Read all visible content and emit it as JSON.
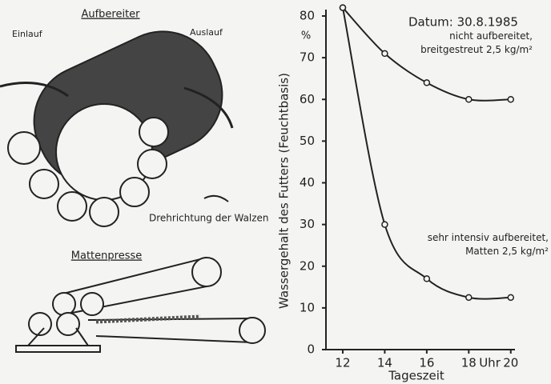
{
  "diagram": {
    "title_top": "Aufbereiter",
    "inlet": "Einlauf",
    "outlet": "Auslauf",
    "rotation": "Drehrichtung der Walzen",
    "title_bottom": "Mattenpresse"
  },
  "chart_data": {
    "type": "line",
    "annotation": "Datum: 30.8.1985",
    "y_unit": "%",
    "x_unit": "Uhr",
    "ylabel": "Wassergehalt des Futters (Feuchtbasis)",
    "xlabel": "Tageszeit",
    "x": [
      12,
      14,
      16,
      18,
      20
    ],
    "series": [
      {
        "name": "nicht aufbereitet, breitgestreut 2,5 kg/m²",
        "color": "#222222",
        "values": [
          82,
          71,
          64,
          60,
          60
        ]
      },
      {
        "name": "sehr intensiv aufbereitet, Matten 2,5 kg/m²",
        "color": "#222222",
        "values": [
          82,
          30,
          17,
          12.5,
          12.5
        ]
      }
    ],
    "xlim": [
      11.2,
      20.2
    ],
    "xticks": [
      12,
      14,
      16,
      18,
      20
    ],
    "ylim": [
      0,
      80
    ],
    "yticks": [
      0,
      10,
      20,
      30,
      40,
      50,
      60,
      70,
      80
    ]
  }
}
